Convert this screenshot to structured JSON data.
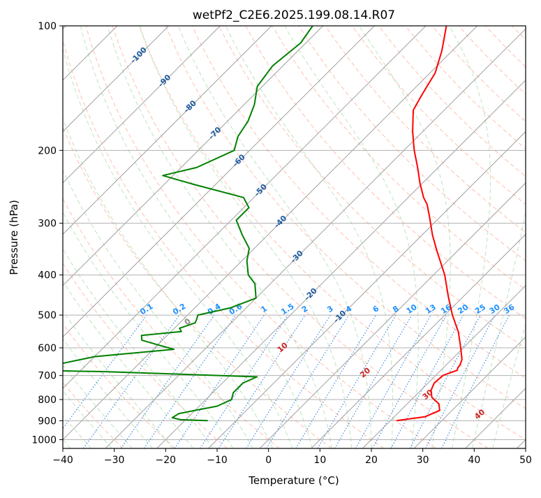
{
  "chart_data": {
    "type": "line",
    "title": "wetPf2_C2E6.2025.199.08.14.R07",
    "xlabel": "Temperature (°C)",
    "ylabel": "Pressure (hPa)",
    "xlim": [
      -40,
      50
    ],
    "ylim": [
      1050,
      100
    ],
    "y_scale": "log",
    "x_ticks": [
      "−40",
      "−30",
      "−20",
      "−10",
      "0",
      "10",
      "20",
      "30",
      "40",
      "50"
    ],
    "y_ticks": [
      {
        "value": 100,
        "label": "100"
      },
      {
        "value": 200,
        "label": "200"
      },
      {
        "value": 300,
        "label": "300"
      },
      {
        "value": 400,
        "label": "400"
      },
      {
        "value": 500,
        "label": "500"
      },
      {
        "value": 600,
        "label": "600"
      },
      {
        "value": 700,
        "label": "700"
      },
      {
        "value": 800,
        "label": "800"
      },
      {
        "value": 900,
        "label": "900"
      },
      {
        "value": 1000,
        "label": "1000"
      }
    ],
    "grid": true,
    "skew_factor": 35,
    "colors": {
      "temperature": "#ff0000",
      "dewpoint": "#008000",
      "isotherm": "#a0a0a0",
      "dry_adiabat": "#ff8c69",
      "moist_adiabat": "#78c878",
      "mixing_ratio": "#1e78dc",
      "isotherm_label": "#1f5a9e",
      "mixing_label": "#1e90ff",
      "moist_label_zero": "#888888",
      "moist_label": "#cc2222"
    },
    "series": [
      {
        "key": "temperature",
        "points": [
          [
            900,
            21.2
          ],
          [
            880,
            26.0
          ],
          [
            850,
            27.6
          ],
          [
            820,
            26.2
          ],
          [
            790,
            23.5
          ],
          [
            760,
            22.0
          ],
          [
            730,
            21.2
          ],
          [
            700,
            21.4
          ],
          [
            690,
            22.2
          ],
          [
            680,
            23.2
          ],
          [
            670,
            22.8
          ],
          [
            660,
            22.7
          ],
          [
            640,
            22.0
          ],
          [
            600,
            19.5
          ],
          [
            550,
            16.0
          ],
          [
            500,
            11.5
          ],
          [
            450,
            7.0
          ],
          [
            400,
            2.2
          ],
          [
            350,
            -4.0
          ],
          [
            320,
            -8.0
          ],
          [
            290,
            -12.0
          ],
          [
            270,
            -15.0
          ],
          [
            260,
            -17.0
          ],
          [
            240,
            -20.5
          ],
          [
            220,
            -24.0
          ],
          [
            200,
            -28.0
          ],
          [
            180,
            -32.0
          ],
          [
            160,
            -36.0
          ],
          [
            150,
            -37.0
          ],
          [
            140,
            -38.0
          ],
          [
            130,
            -39.0
          ],
          [
            115,
            -42.0
          ],
          [
            100,
            -46.0
          ]
        ]
      },
      {
        "key": "dewpoint",
        "points": [
          [
            900,
            -15.5
          ],
          [
            895,
            -21.0
          ],
          [
            885,
            -23.0
          ],
          [
            865,
            -22.5
          ],
          [
            850,
            -20.0
          ],
          [
            830,
            -16.5
          ],
          [
            800,
            -15.0
          ],
          [
            770,
            -16.0
          ],
          [
            730,
            -16.0
          ],
          [
            705,
            -14.5
          ],
          [
            685,
            -45.0
          ],
          [
            680,
            -60.0
          ],
          [
            630,
            -50.0
          ],
          [
            605,
            -36.0
          ],
          [
            590,
            -40.0
          ],
          [
            575,
            -44.0
          ],
          [
            560,
            -45.0
          ],
          [
            548,
            -38.0
          ],
          [
            538,
            -39.0
          ],
          [
            522,
            -37.0
          ],
          [
            510,
            -37.5
          ],
          [
            500,
            -38.0
          ],
          [
            480,
            -33.0
          ],
          [
            455,
            -30.0
          ],
          [
            420,
            -33.0
          ],
          [
            400,
            -36.0
          ],
          [
            370,
            -39.0
          ],
          [
            345,
            -41.0
          ],
          [
            320,
            -45.0
          ],
          [
            295,
            -49.0
          ],
          [
            275,
            -49.0
          ],
          [
            260,
            -52.0
          ],
          [
            242,
            -64.0
          ],
          [
            230,
            -72.0
          ],
          [
            220,
            -67.0
          ],
          [
            200,
            -63.0
          ],
          [
            185,
            -65.0
          ],
          [
            170,
            -66.0
          ],
          [
            155,
            -68.0
          ],
          [
            140,
            -71.0
          ],
          [
            125,
            -72.0
          ],
          [
            110,
            -71.0
          ],
          [
            100,
            -72.0
          ]
        ]
      }
    ],
    "isotherm_labels": [
      "-100",
      "-90",
      "-80",
      "-70",
      "-60",
      "-50",
      "-40",
      "-30",
      "-20",
      "-10"
    ],
    "mixing_ratio_labels": [
      "0.1",
      "0.2",
      "0.4",
      "0.6",
      "1",
      "1.5",
      "2",
      "3",
      "4",
      "6",
      "8",
      "10",
      "13",
      "16",
      "20",
      "25",
      "30",
      "36"
    ],
    "moist_adiabat_labels": [
      "0",
      "10",
      "20",
      "30",
      "40"
    ]
  }
}
